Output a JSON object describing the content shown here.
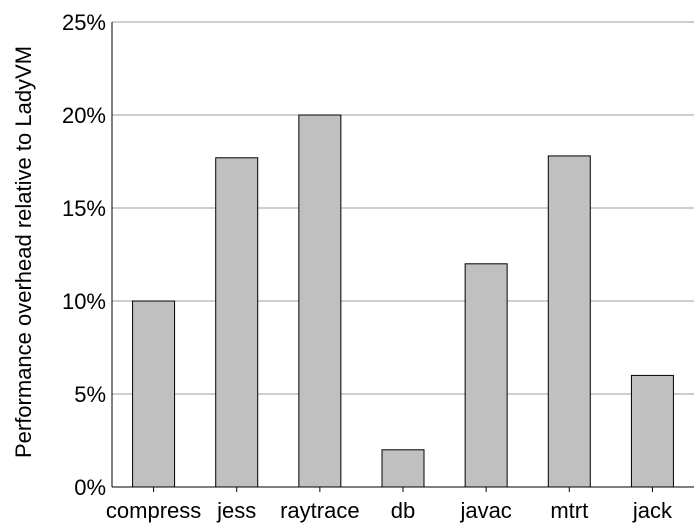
{
  "chart_data": {
    "type": "bar",
    "title": "",
    "xlabel": "",
    "ylabel": "Performance overhead relative to LadyVM",
    "categories": [
      "compress",
      "jess",
      "raytrace",
      "db",
      "javac",
      "mtrt",
      "jack"
    ],
    "series": [
      {
        "values": [
          10.0,
          17.7,
          20.0,
          2.0,
          12.0,
          17.8,
          6.0
        ]
      }
    ],
    "ylim": [
      0,
      25
    ],
    "yticks": [
      0,
      5,
      10,
      15,
      20,
      25
    ],
    "ytick_labels": [
      "0%",
      "5%",
      "10%",
      "15%",
      "20%",
      "25%"
    ],
    "grid": "horizontal",
    "legend": "none",
    "bar_color": "#c0c0c0"
  }
}
